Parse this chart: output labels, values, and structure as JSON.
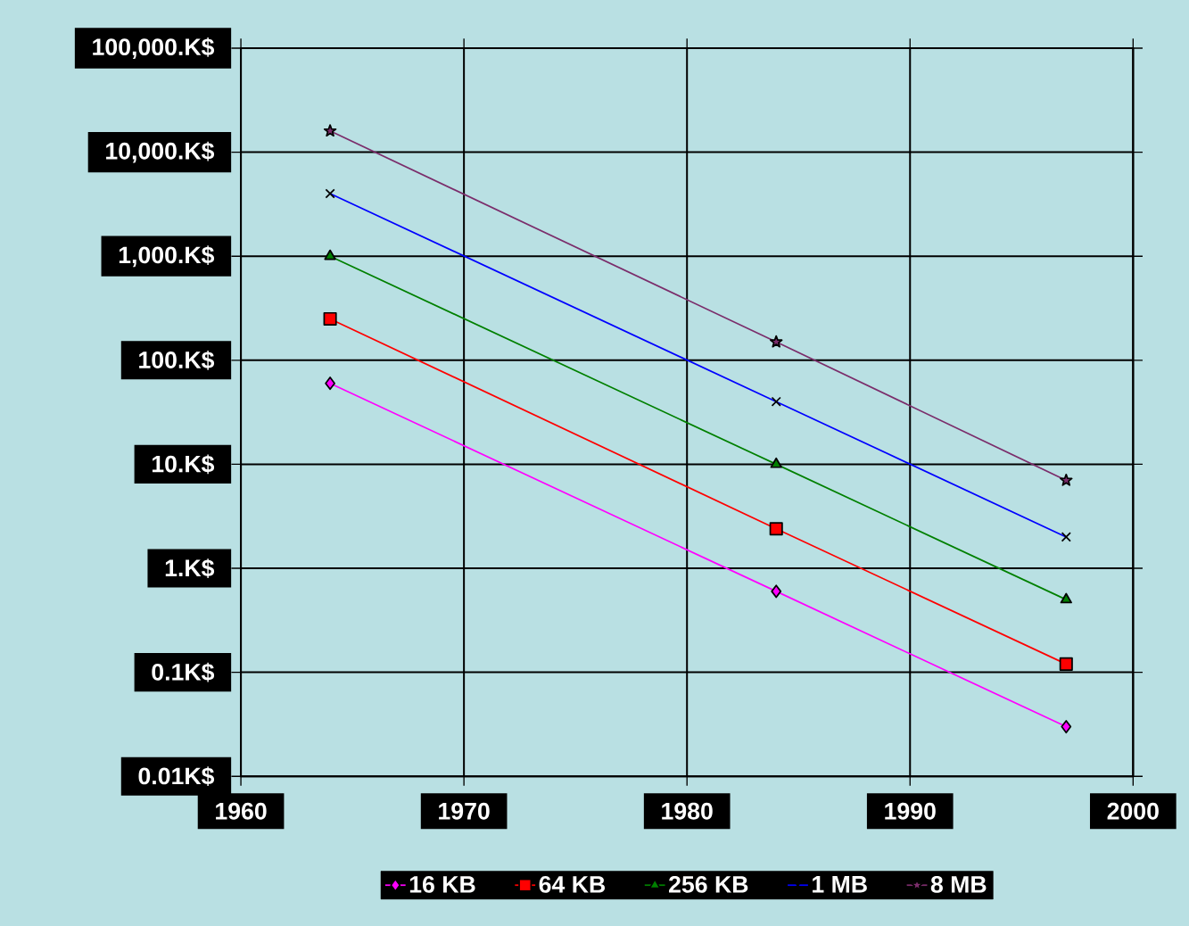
{
  "chart_data": {
    "type": "line",
    "log": "y",
    "grid": true,
    "legend": "bottom",
    "line_style": "solid",
    "x": [
      1964,
      1984,
      1997
    ],
    "xlim": [
      1960,
      2000
    ],
    "xticks": [
      1960,
      1970,
      1980,
      1990,
      2000
    ],
    "ylim": [
      0.01,
      100000
    ],
    "yticks": [
      {
        "value": 0.01,
        "label": "0.01K$"
      },
      {
        "value": 0.1,
        "label": "0.1K$"
      },
      {
        "value": 1,
        "label": "1.K$"
      },
      {
        "value": 10,
        "label": "10.K$"
      },
      {
        "value": 100,
        "label": "100.K$"
      },
      {
        "value": 1000,
        "label": "1,000.K$"
      },
      {
        "value": 10000,
        "label": "10,000.K$"
      },
      {
        "value": 100000,
        "label": "100,000.K$"
      }
    ],
    "series": [
      {
        "name": "16 KB",
        "color": "#ff00ff",
        "marker": "diamond",
        "values": [
          60,
          0.6,
          0.03
        ]
      },
      {
        "name": "64 KB",
        "color": "#ff0000",
        "marker": "square",
        "values": [
          250,
          2.4,
          0.12
        ]
      },
      {
        "name": "256 KB",
        "color": "#008000",
        "marker": "triangle",
        "values": [
          1000,
          10,
          0.5
        ]
      },
      {
        "name": "1 MB",
        "color": "#0000ff",
        "marker": "cross",
        "values": [
          4000,
          40,
          2
        ]
      },
      {
        "name": "8 MB",
        "color": "#7b2d6b",
        "marker": "star",
        "values": [
          16000,
          150,
          7
        ]
      }
    ]
  }
}
